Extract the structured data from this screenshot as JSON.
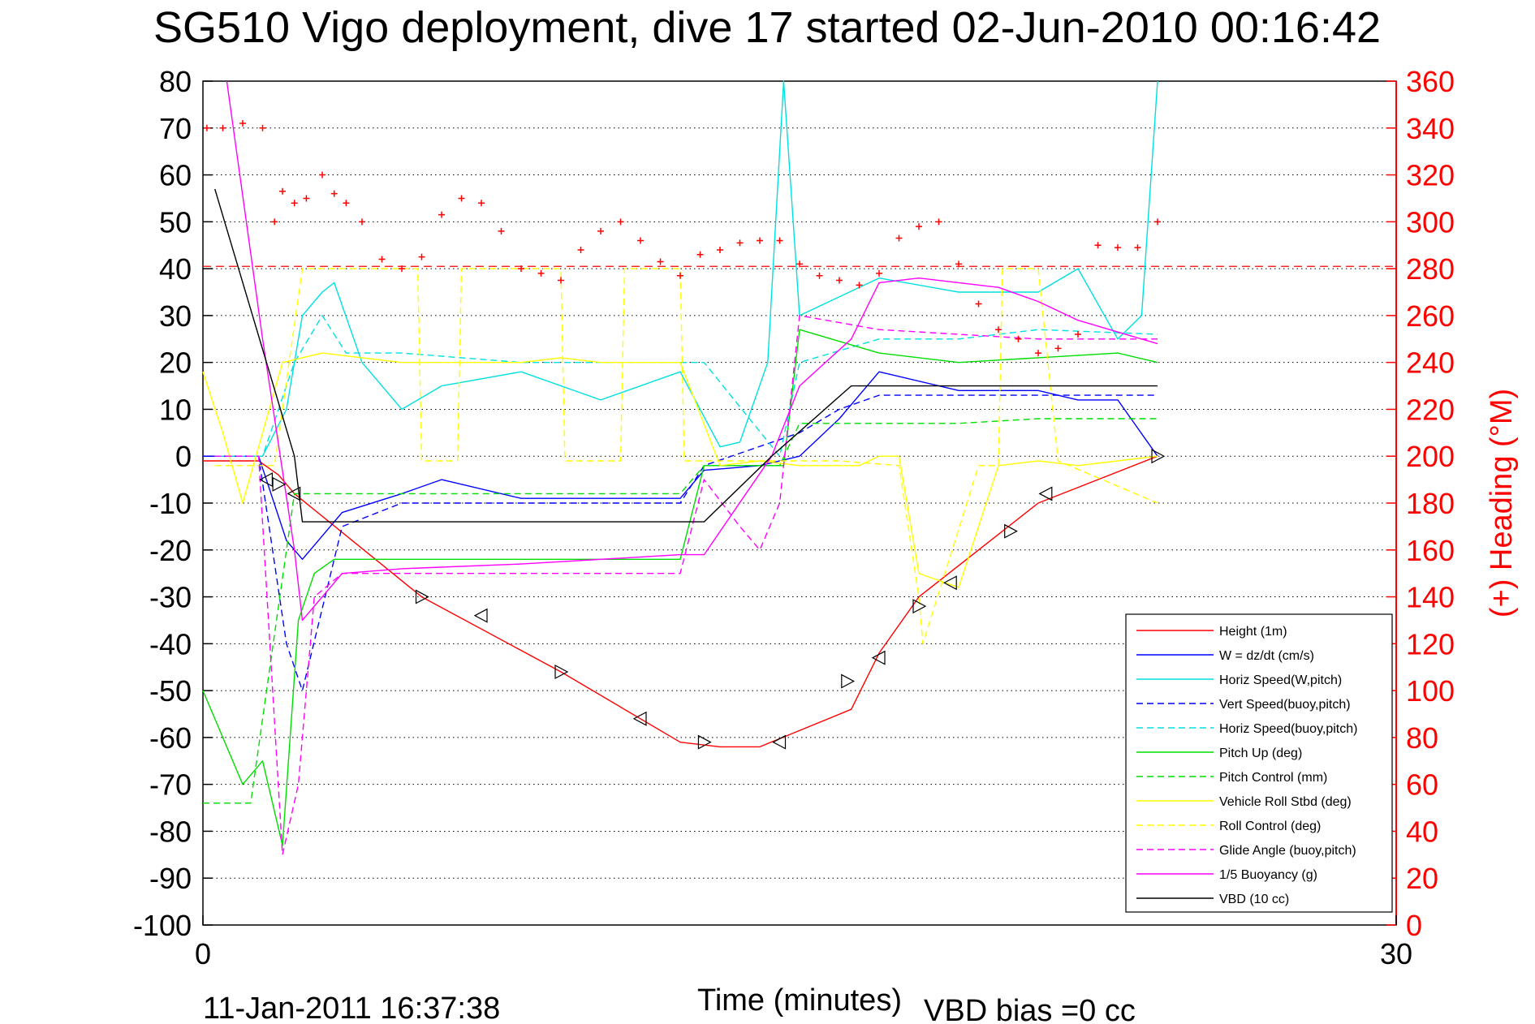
{
  "title": "SG510 Vigo deployment, dive 17 started 02-Jun-2010 00:16:42",
  "footer": {
    "timestamp": "11-Jan-2011 16:37:38",
    "vbd_bias": "VBD bias =0 cc"
  },
  "chart_data": {
    "type": "line",
    "xlabel": "Time (minutes)",
    "ylabel": "",
    "ylabel_right": "(+) Heading (°M)",
    "xlim": [
      0,
      30
    ],
    "ylim": [
      -100,
      80
    ],
    "ylim_right": [
      0,
      360
    ],
    "x_ticks": [
      "0",
      "30"
    ],
    "y_ticks": [
      "-100",
      "-90",
      "-80",
      "-70",
      "-60",
      "-50",
      "-40",
      "-30",
      "-20",
      "-10",
      "0",
      "10",
      "20",
      "30",
      "40",
      "50",
      "60",
      "70",
      "80"
    ],
    "y_ticks_right": [
      "0",
      "20",
      "40",
      "60",
      "80",
      "100",
      "120",
      "140",
      "160",
      "180",
      "200",
      "220",
      "240",
      "260",
      "280",
      "300",
      "320",
      "340",
      "360"
    ],
    "grid": true,
    "legend_position": "bottom-right",
    "heading_reference": 281,
    "series": [
      {
        "name": "Height (1m)",
        "color": "#ff0000",
        "style": "solid",
        "x": [
          0,
          1.4,
          1.9,
          2.3,
          5.5,
          9,
          12,
          13,
          14,
          16.3,
          17,
          18,
          21,
          24
        ],
        "y": [
          -1,
          -1,
          -4,
          -8,
          -30,
          -46,
          -61,
          -62,
          -62,
          -54,
          -42,
          -30,
          -10,
          0
        ]
      },
      {
        "name": "W = dz/dt (cm/s)",
        "color": "#0000ff",
        "style": "solid",
        "x": [
          0,
          1.4,
          2.1,
          2.5,
          3.5,
          5,
          6,
          8,
          10,
          12,
          12.6,
          14,
          15,
          16,
          17,
          19,
          21,
          22,
          23,
          24
        ],
        "y": [
          0,
          0,
          -18,
          -22,
          -12,
          -8,
          -5,
          -9,
          -9,
          -9,
          -3,
          -2,
          0,
          8,
          18,
          14,
          14,
          12,
          12,
          0
        ]
      },
      {
        "name": "Horiz Speed(W,pitch)",
        "color": "#00e0e0",
        "style": "solid",
        "x": [
          0.3,
          1.5,
          2.1,
          2.5,
          3,
          3.3,
          4,
          5,
          6,
          8,
          10,
          12,
          13,
          13.5,
          14.2,
          14.6,
          15,
          17,
          19,
          21,
          22,
          23,
          23.6,
          24
        ],
        "y": [
          0,
          0,
          10,
          30,
          35,
          37,
          20,
          10,
          15,
          18,
          12,
          18,
          2,
          3,
          20,
          80,
          30,
          38,
          35,
          35,
          40,
          25,
          30,
          80
        ]
      },
      {
        "name": "Vert Speed(buoy,pitch)",
        "color": "#0000ff",
        "style": "dashed",
        "x": [
          0,
          1.4,
          2.1,
          2.5,
          3.5,
          5,
          8,
          12,
          12.6,
          15,
          16,
          17,
          24
        ],
        "y": [
          0,
          0,
          -40,
          -50,
          -15,
          -10,
          -10,
          -10,
          -2,
          5,
          10,
          13,
          13
        ]
      },
      {
        "name": "Horiz Speed(buoy,pitch)",
        "color": "#00e0e0",
        "style": "dashed",
        "x": [
          0.3,
          1.5,
          2.3,
          3,
          3.6,
          5,
          8,
          12,
          12.6,
          14.5,
          15,
          17,
          19,
          21,
          24
        ],
        "y": [
          0,
          0,
          20,
          30,
          22,
          22,
          20,
          20,
          20,
          0,
          20,
          25,
          25,
          27,
          26
        ]
      },
      {
        "name": "Pitch Up (deg)",
        "color": "#00dd00",
        "style": "solid",
        "x": [
          0,
          1,
          1.5,
          2,
          2.4,
          2.8,
          3.3,
          5,
          8,
          12,
          12.6,
          14,
          14.6,
          15,
          17,
          19,
          21,
          23,
          24
        ],
        "y": [
          -50,
          -70,
          -65,
          -83,
          -35,
          -25,
          -22,
          -22,
          -22,
          -22,
          -2,
          -2,
          -2,
          27,
          22,
          20,
          21,
          22,
          20
        ]
      },
      {
        "name": "Pitch Control (mm)",
        "color": "#00dd00",
        "style": "dashed",
        "x": [
          0,
          1.2,
          2.3,
          5,
          8,
          12,
          12.6,
          14.5,
          15,
          17,
          19,
          21,
          24
        ],
        "y": [
          -74,
          -74,
          -8,
          -8,
          -8,
          -8,
          -2,
          -2,
          7,
          7,
          7,
          8,
          8
        ]
      },
      {
        "name": "Vehicle Roll Stbd (deg)",
        "color": "#ffff00",
        "style": "solid",
        "x": [
          0,
          0.5,
          1,
          1.5,
          2,
          2.5,
          3,
          4,
          5,
          5.5,
          6,
          7,
          8,
          9,
          10,
          11,
          12,
          13,
          14,
          15,
          16,
          16.5,
          17,
          17.5,
          18,
          19,
          20,
          21,
          22,
          23,
          24
        ],
        "y": [
          18,
          5,
          -10,
          5,
          20,
          21,
          22,
          21,
          20,
          20,
          20,
          20,
          20,
          21,
          20,
          20,
          20,
          -2,
          -1,
          -2,
          -2,
          -2,
          0,
          0,
          -25,
          -28,
          -2,
          -1,
          -2,
          -1,
          0
        ]
      },
      {
        "name": "Roll Control (deg)",
        "color": "#ffff00",
        "style": "dashed",
        "x": [
          0.3,
          1.8,
          2.5,
          5.4,
          5.5,
          6.4,
          6.5,
          9,
          9.1,
          10.5,
          10.6,
          12,
          12.1,
          13,
          14,
          16,
          17.5,
          18,
          18.1,
          19.5,
          20,
          20.1,
          21,
          21.5,
          24
        ],
        "y": [
          -2,
          -2,
          40,
          40,
          -1,
          -1,
          40,
          40,
          -1,
          -1,
          40,
          40,
          -1,
          -1,
          -1,
          -1,
          -2,
          -30,
          -40,
          -2,
          -2,
          40,
          40,
          -1,
          -10
        ]
      },
      {
        "name": "Glide Angle (buoy,pitch)",
        "color": "#ff00ff",
        "style": "dashed",
        "x": [
          0.3,
          1.4,
          2,
          2.4,
          2.8,
          3.5,
          5,
          8,
          12,
          12.6,
          13.5,
          14,
          14.5,
          15,
          17,
          21,
          24
        ],
        "y": [
          0,
          0,
          -85,
          -70,
          -30,
          -25,
          -25,
          -25,
          -25,
          -5,
          -15,
          -20,
          -10,
          30,
          27,
          25,
          25
        ]
      },
      {
        "name": "1/5 Buoyancy (g)",
        "color": "#ff00ff",
        "style": "solid",
        "x": [
          0.6,
          1.5,
          2.3,
          2.5,
          3.5,
          5,
          8,
          12,
          12.6,
          14.3,
          15,
          16.3,
          17,
          18,
          19,
          20,
          21,
          22,
          24
        ],
        "y": [
          80,
          25,
          -20,
          -35,
          -25,
          -24,
          -23,
          -21,
          -21,
          0,
          15,
          25,
          37,
          38,
          37,
          36,
          33,
          29,
          24
        ]
      },
      {
        "name": "VBD (10 cc)",
        "color": "#000000",
        "style": "solid",
        "x": [
          0.3,
          2.3,
          2.5,
          5,
          8,
          12,
          12.6,
          14.3,
          16.3,
          17,
          19,
          21,
          24
        ],
        "y": [
          57,
          0,
          -14,
          -14,
          -14,
          -14,
          -14,
          0,
          15,
          15,
          15,
          15,
          15
        ]
      }
    ],
    "heading": {
      "name": "(+) Heading (°M)",
      "color": "#ff0000",
      "marker": "+",
      "x": [
        0.1,
        0.5,
        1,
        1.5,
        1.8,
        2,
        2.3,
        2.6,
        3,
        3.3,
        3.6,
        4,
        4.5,
        5,
        5.5,
        6,
        6.5,
        7,
        7.5,
        8,
        8.5,
        9,
        9.5,
        10,
        10.5,
        11,
        11.5,
        12,
        12.5,
        13,
        13.5,
        14,
        14.5,
        15,
        15.5,
        16,
        16.5,
        17,
        17.5,
        18,
        18.5,
        19,
        19.5,
        20,
        20.5,
        21,
        21.5,
        22,
        22.5,
        23,
        23.5,
        24
      ],
      "y": [
        340,
        340,
        342,
        340,
        300,
        313,
        308,
        310,
        320,
        312,
        308,
        300,
        284,
        280,
        285,
        303,
        310,
        308,
        296,
        280,
        278,
        275,
        288,
        296,
        300,
        292,
        283,
        277,
        286,
        288,
        291,
        292,
        292,
        282,
        277,
        275,
        273,
        278,
        293,
        298,
        300,
        282,
        265,
        254,
        250,
        244,
        246,
        252,
        290,
        289,
        289,
        300
      ]
    },
    "markers": {
      "name": "Height (1m)",
      "marker": "triangle",
      "x": [
        1.6,
        1.9,
        2.3,
        5.5,
        7.0,
        9.0,
        11.0,
        12.6,
        14.5,
        16.2,
        17.0,
        18.0,
        18.8,
        20.3,
        21.2,
        24
      ],
      "y": [
        -5,
        -6,
        -8,
        -30,
        -34,
        -46,
        -56,
        -61,
        -61,
        -48,
        -43,
        -32,
        -27,
        -16,
        -8,
        0
      ]
    }
  }
}
